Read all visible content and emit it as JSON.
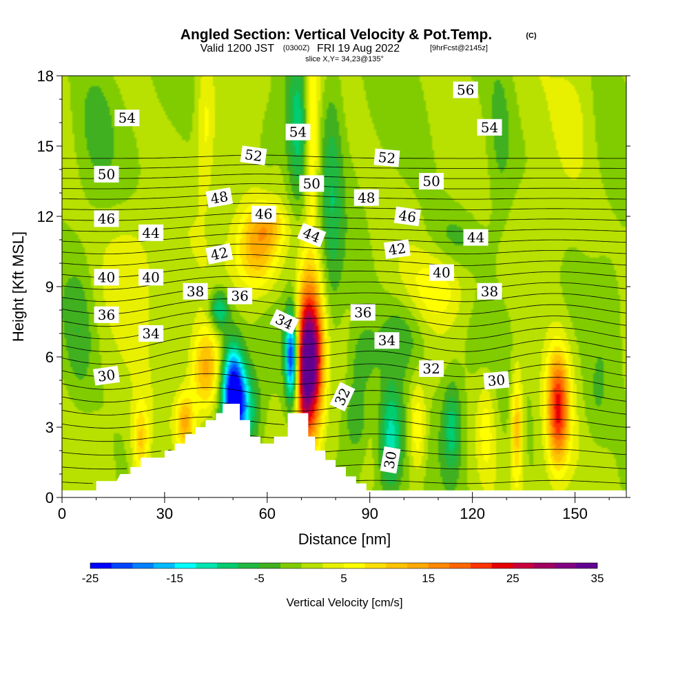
{
  "title": {
    "main": "Angled Section: Vertical Velocity & Pot.Temp.",
    "mark": "(C)",
    "valid_prefix": "Valid 1200 JST",
    "valid_utc": "(0300Z)",
    "valid_date": "FRI 19 Aug 2022",
    "forecast": "[9hrFcst@2145z]",
    "slice": "slice X,Y= 34,23@135°"
  },
  "chart_data": {
    "type": "heatmap",
    "xlabel": "Distance [nm]",
    "ylabel": "Height [Kft MSL]",
    "xlim": [
      0,
      165
    ],
    "ylim": [
      0,
      18
    ],
    "xticks": [
      0,
      30,
      60,
      90,
      120,
      150
    ],
    "yticks": [
      0,
      3,
      6,
      9,
      12,
      15,
      18
    ],
    "colorbar": {
      "label": "Vertical Velocity [cm/s]",
      "min": -25,
      "max": 35,
      "step": 2.5,
      "tick_values": [
        -25,
        -15,
        -5,
        5,
        15,
        25,
        35
      ],
      "colors": [
        "#0000ff",
        "#0044ff",
        "#0080ff",
        "#00bbff",
        "#00ffff",
        "#00e5b0",
        "#00cc70",
        "#20b840",
        "#40b020",
        "#80cc00",
        "#b8e000",
        "#e8f000",
        "#ffff00",
        "#ffe000",
        "#ffc400",
        "#ffaa00",
        "#ff8800",
        "#ff6600",
        "#ff3300",
        "#e60000",
        "#c8003c",
        "#a00060",
        "#800080",
        "#600090"
      ]
    },
    "terrain_profile": [
      [
        0,
        0.3
      ],
      [
        10,
        0.3
      ],
      [
        10,
        0.7
      ],
      [
        16,
        0.7
      ],
      [
        16,
        0.7
      ],
      [
        17,
        1.0
      ],
      [
        20,
        1.0
      ],
      [
        20,
        1.3
      ],
      [
        23,
        1.3
      ],
      [
        23,
        1.7
      ],
      [
        30,
        1.7
      ],
      [
        30,
        2.0
      ],
      [
        33,
        2.0
      ],
      [
        33,
        2.3
      ],
      [
        36,
        2.3
      ],
      [
        36,
        2.7
      ],
      [
        39,
        2.7
      ],
      [
        39,
        3.0
      ],
      [
        42,
        3.0
      ],
      [
        42,
        3.3
      ],
      [
        45,
        3.3
      ],
      [
        45,
        3.6
      ],
      [
        47,
        3.6
      ],
      [
        47,
        4.0
      ],
      [
        52,
        4.0
      ],
      [
        52,
        3.3
      ],
      [
        55,
        3.3
      ],
      [
        55,
        2.6
      ],
      [
        58,
        2.6
      ],
      [
        58,
        2.3
      ],
      [
        62,
        2.3
      ],
      [
        62,
        2.6
      ],
      [
        66,
        2.6
      ],
      [
        66,
        3.6
      ],
      [
        72,
        3.6
      ],
      [
        72,
        2.6
      ],
      [
        74,
        2.6
      ],
      [
        74,
        2.0
      ],
      [
        77,
        2.0
      ],
      [
        77,
        1.6
      ],
      [
        80,
        1.6
      ],
      [
        80,
        1.3
      ],
      [
        83,
        1.3
      ],
      [
        83,
        0.9
      ],
      [
        86,
        0.9
      ],
      [
        86,
        0.6
      ],
      [
        89,
        0.6
      ],
      [
        89,
        0.3
      ],
      [
        165,
        0.3
      ]
    ],
    "theta_contours": {
      "min": 28,
      "max": 57,
      "step": 1
    },
    "contour_labels": [
      {
        "text": "54",
        "x": 19,
        "y": 16.2,
        "angle": 0
      },
      {
        "text": "50",
        "x": 13,
        "y": 13.8,
        "angle": 0
      },
      {
        "text": "46",
        "x": 13,
        "y": 11.9,
        "angle": 0
      },
      {
        "text": "44",
        "x": 26,
        "y": 11.3,
        "angle": 0
      },
      {
        "text": "40",
        "x": 13,
        "y": 9.4,
        "angle": 0
      },
      {
        "text": "40",
        "x": 26,
        "y": 9.4,
        "angle": 0
      },
      {
        "text": "38",
        "x": 39,
        "y": 8.8,
        "angle": 0
      },
      {
        "text": "36",
        "x": 13,
        "y": 7.8,
        "angle": 0
      },
      {
        "text": "34",
        "x": 26,
        "y": 7.0,
        "angle": 0
      },
      {
        "text": "30",
        "x": 13,
        "y": 5.2,
        "angle": -8
      },
      {
        "text": "48",
        "x": 46,
        "y": 12.8,
        "angle": -10
      },
      {
        "text": "46",
        "x": 59,
        "y": 12.1,
        "angle": 0
      },
      {
        "text": "42",
        "x": 46,
        "y": 10.4,
        "angle": -12
      },
      {
        "text": "36",
        "x": 52,
        "y": 8.6,
        "angle": 0
      },
      {
        "text": "52",
        "x": 56,
        "y": 14.6,
        "angle": 8
      },
      {
        "text": "54",
        "x": 69,
        "y": 15.6,
        "angle": 0
      },
      {
        "text": "50",
        "x": 73,
        "y": 13.4,
        "angle": 0
      },
      {
        "text": "44",
        "x": 73,
        "y": 11.2,
        "angle": 22
      },
      {
        "text": "34",
        "x": 65,
        "y": 7.5,
        "angle": 25
      },
      {
        "text": "52",
        "x": 95,
        "y": 14.5,
        "angle": 5
      },
      {
        "text": "48",
        "x": 89,
        "y": 12.8,
        "angle": 0
      },
      {
        "text": "46",
        "x": 101,
        "y": 12.0,
        "angle": 8
      },
      {
        "text": "42",
        "x": 98,
        "y": 10.6,
        "angle": -8
      },
      {
        "text": "40",
        "x": 111,
        "y": 9.6,
        "angle": 0
      },
      {
        "text": "36",
        "x": 88,
        "y": 7.9,
        "angle": 0
      },
      {
        "text": "34",
        "x": 95,
        "y": 6.7,
        "angle": 0
      },
      {
        "text": "32",
        "x": 82,
        "y": 4.3,
        "angle": -65
      },
      {
        "text": "30",
        "x": 96,
        "y": 1.6,
        "angle": -80
      },
      {
        "text": "32",
        "x": 108,
        "y": 5.5,
        "angle": 0
      },
      {
        "text": "30",
        "x": 127,
        "y": 5.0,
        "angle": -5
      },
      {
        "text": "38",
        "x": 125,
        "y": 8.8,
        "angle": 0
      },
      {
        "text": "44",
        "x": 121,
        "y": 11.1,
        "angle": 0
      },
      {
        "text": "50",
        "x": 108,
        "y": 13.5,
        "angle": 0
      },
      {
        "text": "54",
        "x": 125,
        "y": 15.8,
        "angle": 0
      },
      {
        "text": "56",
        "x": 118,
        "y": 17.4,
        "angle": 0
      }
    ],
    "w_features": [
      {
        "x": 73,
        "y": 5.8,
        "sx": 2.4,
        "sy": 2.2,
        "a": 34
      },
      {
        "x": 70.5,
        "y": 5.0,
        "sx": 1.5,
        "sy": 2.8,
        "a": 14
      },
      {
        "x": 67,
        "y": 6.0,
        "sx": 1.2,
        "sy": 1.3,
        "a": -22
      },
      {
        "x": 50,
        "y": 4.6,
        "sx": 2.3,
        "sy": 1.4,
        "a": -24
      },
      {
        "x": 53,
        "y": 3.8,
        "sx": 3.2,
        "sy": 1.2,
        "a": -12
      },
      {
        "x": 46,
        "y": 8.0,
        "sx": 2.0,
        "sy": 0.6,
        "a": -12
      },
      {
        "x": 57,
        "y": 10.6,
        "sx": 4.5,
        "sy": 1.3,
        "a": 14
      },
      {
        "x": 61,
        "y": 11.6,
        "sx": 3.5,
        "sy": 0.6,
        "a": 6
      },
      {
        "x": 42,
        "y": 5.4,
        "sx": 3.0,
        "sy": 1.3,
        "a": 14
      },
      {
        "x": 36,
        "y": 3.2,
        "sx": 2.0,
        "sy": 0.9,
        "a": 13
      },
      {
        "x": 23,
        "y": 2.4,
        "sx": 1.7,
        "sy": 1.2,
        "a": 10
      },
      {
        "x": 145,
        "y": 3.8,
        "sx": 2.3,
        "sy": 1.7,
        "a": 22
      },
      {
        "x": 133,
        "y": 3.0,
        "sx": 1.2,
        "sy": 1.7,
        "a": 12
      },
      {
        "x": 96,
        "y": 2.5,
        "sx": 2.5,
        "sy": 1.7,
        "a": -12
      },
      {
        "x": 114,
        "y": 3.0,
        "sx": 2.0,
        "sy": 1.4,
        "a": -9
      },
      {
        "x": 124,
        "y": 3.0,
        "sx": 2.0,
        "sy": 1.5,
        "a": 6
      },
      {
        "x": 104,
        "y": 3.0,
        "sx": 1.8,
        "sy": 1.4,
        "a": 8
      },
      {
        "x": 86,
        "y": 3.5,
        "sx": 2.5,
        "sy": 1.2,
        "a": -7
      },
      {
        "x": 79,
        "y": 13.0,
        "sx": 2.2,
        "sy": 4.0,
        "a": -6
      },
      {
        "x": 69,
        "y": 16.0,
        "sx": 2.5,
        "sy": 2.5,
        "a": -9
      },
      {
        "x": 73,
        "y": 15.5,
        "sx": 1.5,
        "sy": 3.5,
        "a": 10
      },
      {
        "x": 128,
        "y": 15.0,
        "sx": 3.0,
        "sy": 3.0,
        "a": -4
      },
      {
        "x": 115,
        "y": 11.0,
        "sx": 6.0,
        "sy": 1.0,
        "a": -4
      },
      {
        "x": 42,
        "y": 16.0,
        "sx": 2.0,
        "sy": 2.0,
        "a": 6
      },
      {
        "x": 60,
        "y": 15.0,
        "sx": 3.0,
        "sy": 1.5,
        "a": -3
      },
      {
        "x": 20,
        "y": 10.0,
        "sx": 6.0,
        "sy": 2.0,
        "a": 4
      },
      {
        "x": 110,
        "y": 9.0,
        "sx": 6.0,
        "sy": 1.2,
        "a": 6
      },
      {
        "x": 140,
        "y": 11.0,
        "sx": 6.0,
        "sy": 2.0,
        "a": 3
      },
      {
        "x": 150,
        "y": 16.0,
        "sx": 4.0,
        "sy": 2.0,
        "a": 3
      },
      {
        "x": 10,
        "y": 16.0,
        "sx": 4.0,
        "sy": 2.0,
        "a": -3
      },
      {
        "x": 5,
        "y": 7.0,
        "sx": 3.0,
        "sy": 2.0,
        "a": -4
      },
      {
        "x": 156,
        "y": 4.0,
        "sx": 3.0,
        "sy": 1.5,
        "a": -3
      },
      {
        "x": 160,
        "y": 8.0,
        "sx": 4.0,
        "sy": 2.0,
        "a": -3
      },
      {
        "x": 88,
        "y": 6.0,
        "sx": 3.0,
        "sy": 1.0,
        "a": -5
      },
      {
        "x": 100,
        "y": 7.0,
        "sx": 5.0,
        "sy": 1.2,
        "a": -5
      }
    ]
  }
}
